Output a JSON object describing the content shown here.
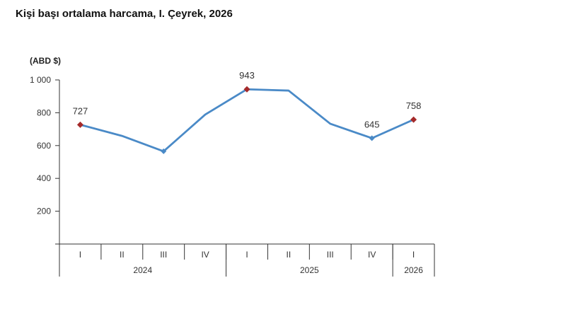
{
  "chart_data": {
    "type": "line",
    "title": "Kişi başı ortalama harcama, I. Çeyrek, 2026",
    "ylabel": "(ABD $)",
    "xlabel": "",
    "ylim": [
      0,
      1000
    ],
    "yticks": [
      200,
      400,
      600,
      800,
      1000
    ],
    "ytick_labels": [
      "200",
      "400",
      "600",
      "800",
      "1 000"
    ],
    "categories": [
      "I",
      "II",
      "III",
      "IV",
      "I",
      "II",
      "III",
      "IV",
      "I"
    ],
    "years": [
      {
        "label": "2024",
        "span": 4
      },
      {
        "label": "2025",
        "span": 4
      },
      {
        "label": "2026",
        "span": 1
      }
    ],
    "series": [
      {
        "name": "Kişi başı ortalama harcama",
        "values": [
          727,
          659,
          565,
          789,
          943,
          935,
          733,
          645,
          758
        ],
        "color": "#4a8ac7"
      }
    ],
    "data_labels": [
      {
        "index": 0,
        "text": "727"
      },
      {
        "index": 4,
        "text": "943"
      },
      {
        "index": 7,
        "text": "645"
      },
      {
        "index": 8,
        "text": "758"
      }
    ],
    "highlight_points": [
      0,
      4,
      8
    ],
    "highlight_color": "#a52a2a",
    "minor_markers": [
      2,
      7
    ],
    "grid": false
  }
}
